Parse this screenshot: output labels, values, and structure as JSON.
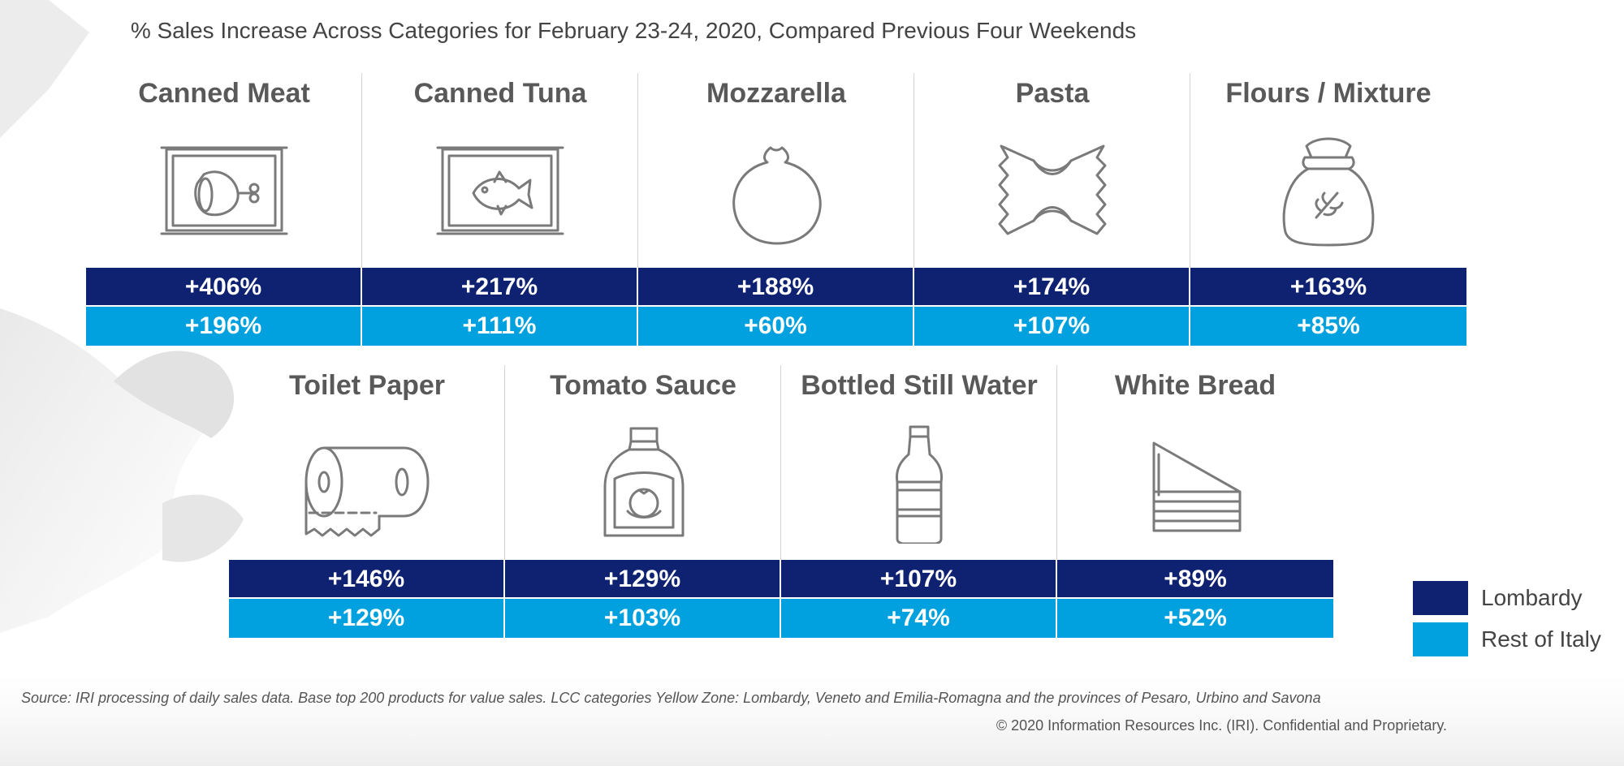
{
  "title": "% Sales Increase Across Categories for February 23-24, 2020, Compared Previous Four Weekends",
  "colors": {
    "lombardy": "#0f2271",
    "rest_of_italy": "#00a1de",
    "icon_stroke": "#7a7a7a"
  },
  "chart_data": {
    "type": "table",
    "title": "% Sales Increase Across Categories for February 23-24, 2020, Compared Previous Four Weekends",
    "categories": [
      "Canned Meat",
      "Canned Tuna",
      "Mozzarella",
      "Pasta",
      "Flours / Mixture",
      "Toilet Paper",
      "Tomato Sauce",
      "Bottled Still Water",
      "White Bread"
    ],
    "series": [
      {
        "name": "Lombardy",
        "values": [
          406,
          217,
          188,
          174,
          163,
          146,
          129,
          107,
          89
        ]
      },
      {
        "name": "Rest of Italy",
        "values": [
          196,
          111,
          60,
          107,
          85,
          129,
          103,
          74,
          52
        ]
      }
    ],
    "legend_position": "bottom-right"
  },
  "rows": [
    [
      {
        "label": "Canned Meat",
        "icon": "canned-meat-icon",
        "lombardy": "+406%",
        "rest": "+196%"
      },
      {
        "label": "Canned Tuna",
        "icon": "canned-tuna-icon",
        "lombardy": "+217%",
        "rest": "+111%"
      },
      {
        "label": "Mozzarella",
        "icon": "mozzarella-icon",
        "lombardy": "+188%",
        "rest": "+60%"
      },
      {
        "label": "Pasta",
        "icon": "pasta-icon",
        "lombardy": "+174%",
        "rest": "+107%"
      },
      {
        "label": "Flours / Mixture",
        "icon": "flour-sack-icon",
        "lombardy": "+163%",
        "rest": "+85%"
      }
    ],
    [
      {
        "label": "Toilet Paper",
        "icon": "toilet-paper-icon",
        "lombardy": "+146%",
        "rest": "+129%"
      },
      {
        "label": "Tomato Sauce",
        "icon": "tomato-sauce-icon",
        "lombardy": "+129%",
        "rest": "+103%"
      },
      {
        "label": "Bottled Still Water",
        "icon": "water-bottle-icon",
        "lombardy": "+107%",
        "rest": "+74%"
      },
      {
        "label": "White Bread",
        "icon": "white-bread-icon",
        "lombardy": "+89%",
        "rest": "+52%"
      }
    ]
  ],
  "legend": [
    {
      "label": "Lombardy",
      "color": "#0f2271"
    },
    {
      "label": "Rest of Italy",
      "color": "#00a1de"
    }
  ],
  "source": "Source: IRI processing of daily sales data. Base top 200 products for value sales. LCC categories Yellow Zone: Lombardy, Veneto and Emilia-Romagna and the provinces of Pesaro, Urbino and Savona",
  "copyright": "© 2020 Information Resources Inc. (IRI). Confidential and Proprietary."
}
